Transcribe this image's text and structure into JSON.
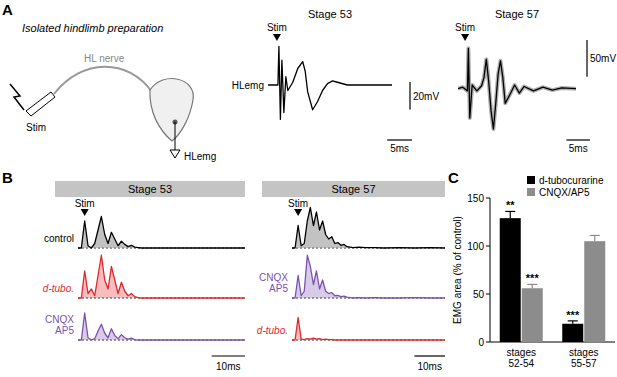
{
  "figure": {
    "panel_labels": [
      "A",
      "B",
      "C"
    ],
    "diagram": {
      "title": "Isolated hindlimb preparation",
      "nerve": "HL nerve",
      "stim": "Stim",
      "recording": "HLemg"
    }
  },
  "chart_data": [
    {
      "type": "line",
      "title": "Stage 53",
      "x": [
        0,
        1,
        2,
        2.2,
        2.5,
        2.8,
        3.2,
        3.6,
        4,
        5,
        6,
        7,
        7.5,
        8,
        9,
        10,
        11,
        12,
        13,
        14,
        16,
        18,
        20,
        25
      ],
      "series": [
        {
          "color": "#000000",
          "values": [
            0,
            0,
            0,
            28,
            -25,
            18,
            -20,
            6,
            -4,
            2,
            12,
            17,
            10,
            -5,
            -18,
            -12,
            -4,
            1,
            3,
            2,
            0,
            0,
            0,
            0
          ]
        }
      ],
      "xlim": [
        0,
        25
      ],
      "ylim": [
        -40,
        40
      ],
      "tick_labels": false,
      "scale_bars": {
        "x": {
          "value": 5,
          "label": "5ms"
        },
        "y": {
          "value": 20,
          "label": "20mV"
        }
      },
      "annotations": [
        {
          "text": "Stim",
          "x": 1.8
        },
        {
          "text": "HLemg"
        }
      ]
    },
    {
      "type": "line",
      "title": "Stage 57",
      "x": [
        0,
        1,
        2,
        2.2,
        2.5,
        3,
        4,
        5,
        5.5,
        6,
        6.5,
        7,
        7.5,
        8,
        8.5,
        9,
        9.5,
        10,
        11,
        12,
        13,
        14,
        16,
        18,
        20,
        22,
        25
      ],
      "series": [
        {
          "color": "#000000",
          "values": [
            0,
            2,
            -3,
            55,
            -40,
            5,
            -3,
            4,
            15,
            40,
            10,
            -30,
            -55,
            -20,
            20,
            38,
            15,
            -20,
            -8,
            5,
            -6,
            3,
            -3,
            2,
            -2,
            1,
            0
          ]
        }
      ],
      "xlim": [
        0,
        25
      ],
      "ylim": [
        -70,
        80
      ],
      "tick_labels": false,
      "scale_bars": {
        "x": {
          "value": 5,
          "label": "5ms"
        },
        "y": {
          "value": 50,
          "label": "50mV"
        }
      },
      "annotations": [
        {
          "text": "Stim",
          "x": 1.5
        }
      ]
    },
    {
      "type": "line",
      "title": "Stage 53",
      "x": [
        0,
        1,
        2,
        3,
        4,
        5,
        6,
        7,
        8,
        9,
        10,
        11,
        12,
        13,
        14,
        15,
        16,
        17,
        18,
        19,
        20,
        22,
        24,
        27,
        30,
        35,
        40,
        45,
        50
      ],
      "series": [
        {
          "name": "control",
          "color": "#000000",
          "values": [
            0,
            0,
            60,
            5,
            0,
            10,
            40,
            70,
            30,
            10,
            35,
            20,
            5,
            15,
            8,
            3,
            6,
            2,
            1,
            0,
            0,
            0,
            0,
            0,
            0,
            0,
            0,
            0,
            0
          ]
        },
        {
          "name": "d-tubo.",
          "color": "#e3262b",
          "values": [
            0,
            0,
            60,
            10,
            20,
            5,
            50,
            95,
            40,
            20,
            70,
            40,
            10,
            35,
            15,
            5,
            10,
            3,
            1,
            0,
            0,
            0,
            0,
            0,
            0,
            0,
            0,
            0,
            0
          ]
        },
        {
          "name": "CNQX AP5",
          "color": "#7b52ae",
          "values": [
            0,
            0,
            60,
            5,
            0,
            3,
            20,
            35,
            15,
            5,
            25,
            10,
            3,
            12,
            5,
            2,
            4,
            1,
            0,
            0,
            0,
            0,
            0,
            0,
            0,
            0,
            0,
            0,
            0
          ]
        }
      ],
      "xlim": [
        0,
        50
      ],
      "ylim": [
        0,
        100
      ],
      "tick_labels": false,
      "scale_bars": {
        "x": {
          "value": 10,
          "label": "10ms"
        }
      },
      "annotations": [
        {
          "text": "Stim",
          "x": 2
        }
      ]
    },
    {
      "type": "line",
      "title": "Stage 57",
      "x": [
        0,
        1,
        2,
        3,
        4,
        5,
        6,
        7,
        8,
        9,
        10,
        11,
        12,
        13,
        14,
        15,
        16,
        17,
        18,
        19,
        20,
        22,
        24,
        27,
        30,
        35,
        40,
        45,
        50
      ],
      "series": [
        {
          "color": "#000000",
          "values": [
            0,
            0,
            50,
            5,
            10,
            60,
            90,
            50,
            80,
            40,
            60,
            30,
            20,
            25,
            10,
            12,
            6,
            8,
            3,
            2,
            1,
            2,
            1,
            1,
            0,
            1,
            0,
            1,
            0
          ]
        },
        {
          "name": "CNQX AP5",
          "color": "#7b52ae",
          "values": [
            0,
            0,
            50,
            5,
            15,
            95,
            70,
            30,
            60,
            20,
            40,
            15,
            10,
            12,
            5,
            6,
            3,
            4,
            2,
            1,
            0,
            1,
            0,
            1,
            0,
            0,
            1,
            0,
            0
          ]
        },
        {
          "name": "d-tubo.",
          "color": "#e3262b",
          "values": [
            0,
            0,
            50,
            2,
            1,
            3,
            2,
            4,
            2,
            3,
            1,
            2,
            1,
            1,
            0,
            0,
            0,
            0,
            0,
            0,
            0,
            0,
            0,
            0,
            0,
            0,
            0,
            0,
            0
          ]
        }
      ],
      "xlim": [
        0,
        50
      ],
      "ylim": [
        0,
        100
      ],
      "tick_labels": false,
      "scale_bars": {
        "x": {
          "value": 10,
          "label": "10ms"
        }
      },
      "annotations": [
        {
          "text": "Stim",
          "x": 2
        }
      ]
    },
    {
      "type": "bar",
      "y_label": "EMG area (% of control)",
      "categories": [
        "stages 52-54",
        "stages 55-57"
      ],
      "series": [
        {
          "name": "d-tubocurarine",
          "color": "#000000",
          "values": [
            129,
            19
          ],
          "errors": [
            7,
            3
          ],
          "significance": [
            "**",
            "***"
          ]
        },
        {
          "name": "CNQX/AP5",
          "color": "#8c8c8c",
          "values": [
            56,
            105
          ],
          "errors": [
            4,
            6
          ],
          "significance": [
            "***",
            null
          ]
        }
      ],
      "ylim": [
        0,
        150
      ],
      "yticks": [
        0,
        50,
        100,
        150
      ],
      "legend": "upper right"
    }
  ]
}
